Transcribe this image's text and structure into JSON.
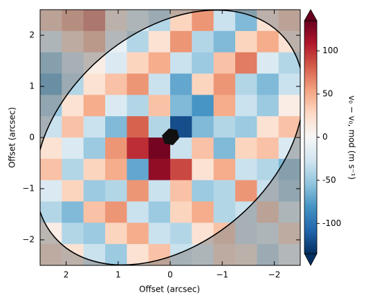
{
  "chart_data": {
    "type": "heatmap",
    "xlabel": "Offset (arcsec)",
    "ylabel": "Offset (arcsec)",
    "xlim": [
      2.5,
      -2.5
    ],
    "ylim": [
      -2.5,
      2.5
    ],
    "xticks": [
      2,
      1,
      0,
      {
        "value": -1,
        "label": "−1"
      },
      {
        "value": -2,
        "label": "−2"
      }
    ],
    "yticks": [
      {
        "value": -2,
        "label": "−2"
      },
      {
        "value": -1,
        "label": "−1"
      },
      0,
      1,
      2
    ],
    "clim": [
      -135,
      135
    ],
    "cticks": [
      -100,
      -50,
      0,
      50,
      100
    ],
    "clabel": "v₀ − v₀, mod   (m s⁻¹)",
    "colormap": [
      "#053061",
      "#2166ac",
      "#4393c3",
      "#92c5de",
      "#d1e5f0",
      "#f7f7f7",
      "#fddbc7",
      "#f4a582",
      "#d6604d",
      "#b2182b",
      "#67001f"
    ],
    "z": [
      [
        40,
        60,
        80,
        20,
        -20,
        -40,
        30,
        60,
        -30,
        -60,
        20,
        40
      ],
      [
        -20,
        30,
        50,
        -10,
        -40,
        20,
        60,
        -40,
        -60,
        30,
        50,
        20
      ],
      [
        -60,
        -30,
        10,
        -20,
        30,
        50,
        -30,
        -50,
        40,
        70,
        -20,
        -40
      ],
      [
        -80,
        -40,
        20,
        40,
        60,
        -30,
        -70,
        30,
        60,
        -40,
        -60,
        -30
      ],
      [
        -50,
        20,
        50,
        -20,
        -40,
        40,
        -60,
        -80,
        50,
        -30,
        -50,
        10
      ],
      [
        -30,
        40,
        -30,
        -60,
        80,
        -40,
        -120,
        -60,
        -40,
        -50,
        20,
        40
      ],
      [
        20,
        -20,
        -50,
        60,
        100,
        130,
        -30,
        40,
        -60,
        30,
        40,
        -20
      ],
      [
        40,
        -40,
        30,
        50,
        -70,
        120,
        90,
        20,
        50,
        -30,
        -40,
        -60
      ],
      [
        -20,
        30,
        -50,
        -40,
        60,
        -30,
        40,
        -50,
        -40,
        60,
        -30,
        -50
      ],
      [
        -40,
        -60,
        40,
        60,
        -30,
        -50,
        30,
        50,
        -40,
        -30,
        40,
        -20
      ],
      [
        10,
        -40,
        -50,
        30,
        50,
        -30,
        -40,
        20,
        40,
        -30,
        -20,
        30
      ],
      [
        30,
        20,
        -30,
        -50,
        20,
        40,
        -30,
        -20,
        30,
        20,
        -40,
        -10
      ]
    ]
  }
}
